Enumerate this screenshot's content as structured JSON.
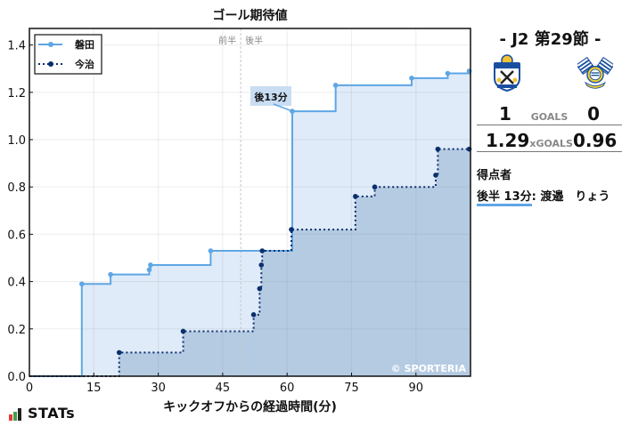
{
  "header": {
    "title": "ゴール期待値"
  },
  "chart_data": {
    "type": "line",
    "subtype": "step",
    "title": "ゴール期待値",
    "xlabel": "キックオフからの経過時間(分)",
    "ylabel": "",
    "xlim": [
      0,
      102.7
    ],
    "ylim": [
      0,
      1.47
    ],
    "xticks": [
      0,
      15,
      30,
      45,
      60,
      75,
      90
    ],
    "yticks": [
      0.0,
      0.2,
      0.4,
      0.6,
      0.8,
      1.0,
      1.2,
      1.4
    ],
    "ytick_labels": [
      "0.0",
      "0.2",
      "0.4",
      "0.6",
      "0.8",
      "1.0",
      "1.2",
      "1.4"
    ],
    "grid": true,
    "legend_position": "upper left",
    "halftime_marker": {
      "x": 49.2,
      "labels": [
        "前半",
        "後半"
      ]
    },
    "annotations": [
      {
        "text": "後13分",
        "x": 61.2,
        "y": 1.12
      }
    ],
    "watermark": "© SPORTERIA",
    "series": [
      {
        "name": "磐田",
        "color": "#5ea6e4",
        "fill": "#dfebf8",
        "style": "solid",
        "x": [
          12.2,
          18.9,
          27.9,
          28.2,
          42.2,
          61.2,
          71.3,
          89.0,
          97.4,
          102.4
        ],
        "values": [
          0.39,
          0.43,
          0.45,
          0.47,
          0.53,
          1.12,
          1.23,
          1.26,
          1.28,
          1.29
        ]
      },
      {
        "name": "今治",
        "color": "#0b2f6e",
        "fill": "#b5cbe2",
        "style": "dotted",
        "x": [
          20.9,
          35.8,
          52.2,
          53.6,
          54.0,
          54.2,
          61.0,
          75.9,
          80.4,
          94.6,
          95.1,
          102.4
        ],
        "values": [
          0.1,
          0.19,
          0.26,
          0.37,
          0.47,
          0.53,
          0.62,
          0.76,
          0.8,
          0.85,
          0.96,
          0.96
        ]
      }
    ]
  },
  "match": {
    "round": "- J2 第29節 -",
    "home": {
      "name": "磐田",
      "goals": "1",
      "xg": "1.29",
      "crest": "jubilo-iwata-crest-icon"
    },
    "away": {
      "name": "今治",
      "goals": "0",
      "xg": "0.96",
      "crest": "fc-imabari-crest-icon"
    },
    "goals_label": "GOALS",
    "xg_label": "xGOALS"
  },
  "scorers": {
    "title": "得点者",
    "items": [
      {
        "time": "後半 13分",
        "sep": ": ",
        "name": "渡邉　りょう"
      }
    ]
  },
  "footer": {
    "logo_text": "STATs"
  }
}
